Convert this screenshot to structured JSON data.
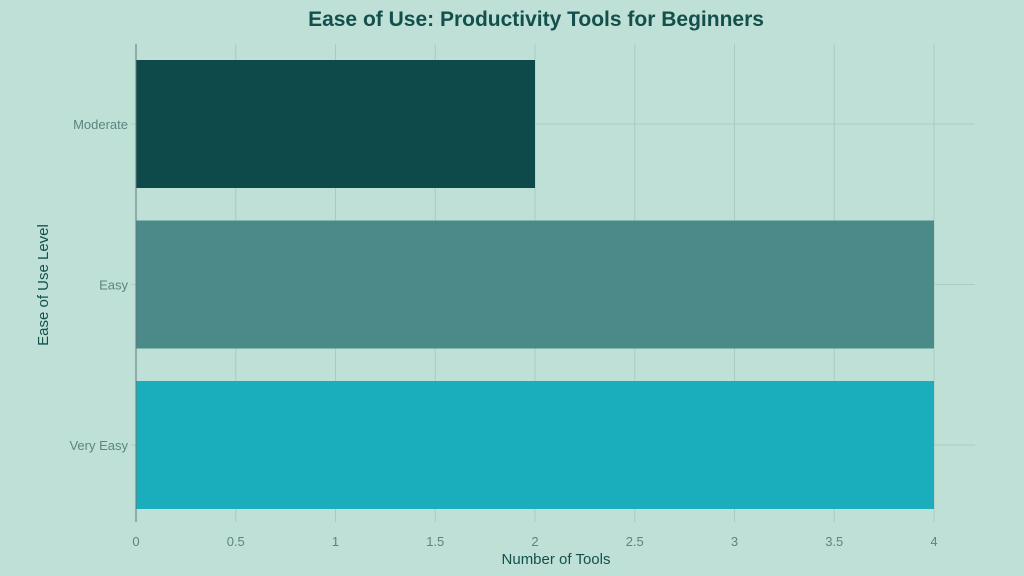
{
  "chart_data": {
    "type": "bar",
    "orientation": "horizontal",
    "title": "Ease of Use: Productivity Tools for Beginners",
    "xlabel": "Number of Tools",
    "ylabel": "Ease of Use Level",
    "categories": [
      "Moderate",
      "Easy",
      "Very Easy"
    ],
    "values": [
      2,
      4,
      4
    ],
    "colors": [
      "#0f4a4a",
      "#4a8b8a",
      "#1aaebd"
    ],
    "xlim": [
      0,
      4.2
    ],
    "xticks": [
      "0",
      "0.5",
      "1",
      "1.5",
      "2",
      "2.5",
      "3",
      "3.5",
      "4"
    ],
    "grid": true,
    "legend": "none"
  }
}
